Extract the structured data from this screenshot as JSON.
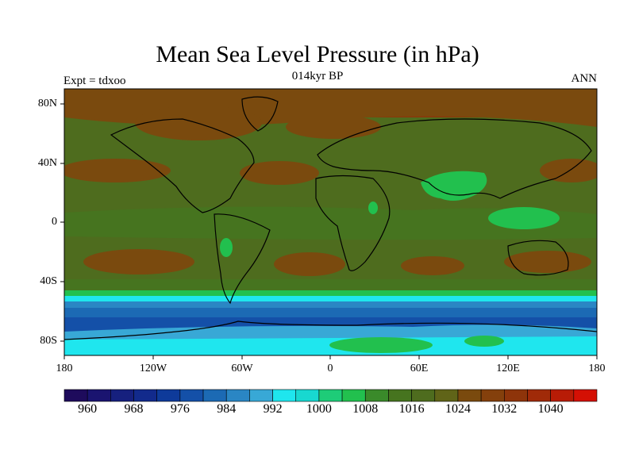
{
  "title": "Mean Sea Level Pressure (in hPa)",
  "subtitle": "014kyr BP",
  "left_label": "Expt = tdxoo",
  "right_label": "ANN",
  "lat_labels": [
    "80N",
    "40N",
    "0",
    "40S",
    "80S"
  ],
  "lon_labels": [
    "180",
    "120W",
    "60W",
    "0",
    "60E",
    "120E",
    "180"
  ],
  "colorbar": {
    "colors": [
      "#1e0b5c",
      "#1a1470",
      "#16207e",
      "#122a8c",
      "#0e3a9a",
      "#1450a8",
      "#1c6ab4",
      "#2a86c4",
      "#38a8d6",
      "#1fe6ee",
      "#18d8d0",
      "#1ecc78",
      "#22c04e",
      "#3a8a2a",
      "#46741f",
      "#4e6c1e",
      "#606418",
      "#7a4a0e",
      "#84400c",
      "#8e340a",
      "#a02a08",
      "#b81c06",
      "#d41004"
    ],
    "tick_labels": [
      "960",
      "968",
      "976",
      "984",
      "992",
      "1000",
      "1008",
      "1016",
      "1024",
      "1032",
      "1040"
    ]
  }
}
